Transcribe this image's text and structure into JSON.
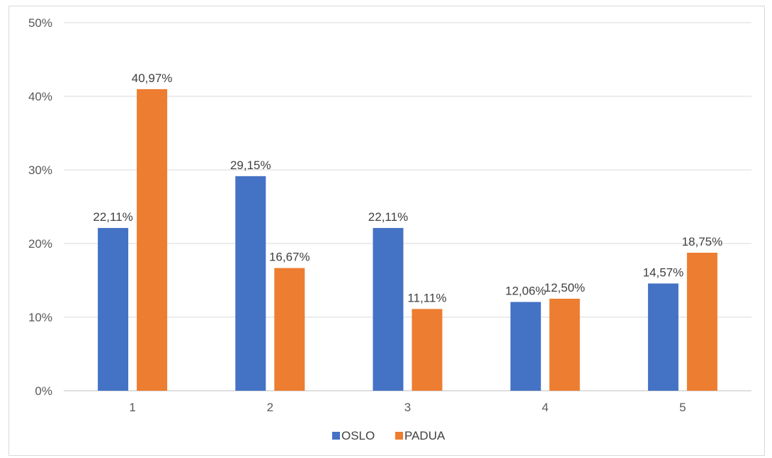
{
  "chart_data": {
    "type": "bar",
    "title": "",
    "xlabel": "",
    "ylabel": "",
    "categories": [
      "1",
      "2",
      "3",
      "4",
      "5"
    ],
    "series": [
      {
        "name": "OSLO",
        "color": "#4472c4",
        "values": [
          22.11,
          29.15,
          22.11,
          12.06,
          14.57
        ],
        "labels": [
          "22,11%",
          "29,15%",
          "22,11%",
          "12,06%",
          "14,57%"
        ]
      },
      {
        "name": "PADUA",
        "color": "#ed7d31",
        "values": [
          40.97,
          16.67,
          11.11,
          12.5,
          18.75
        ],
        "labels": [
          "40,97%",
          "16,67%",
          "11,11%",
          "12,50%",
          "18,75%"
        ]
      }
    ],
    "ylim": [
      0,
      50
    ],
    "yticks": [
      0,
      10,
      20,
      30,
      40,
      50
    ],
    "ytick_labels": [
      "0%",
      "10%",
      "20%",
      "30%",
      "40%",
      "50%"
    ],
    "grid": true,
    "legend": "bottom"
  }
}
